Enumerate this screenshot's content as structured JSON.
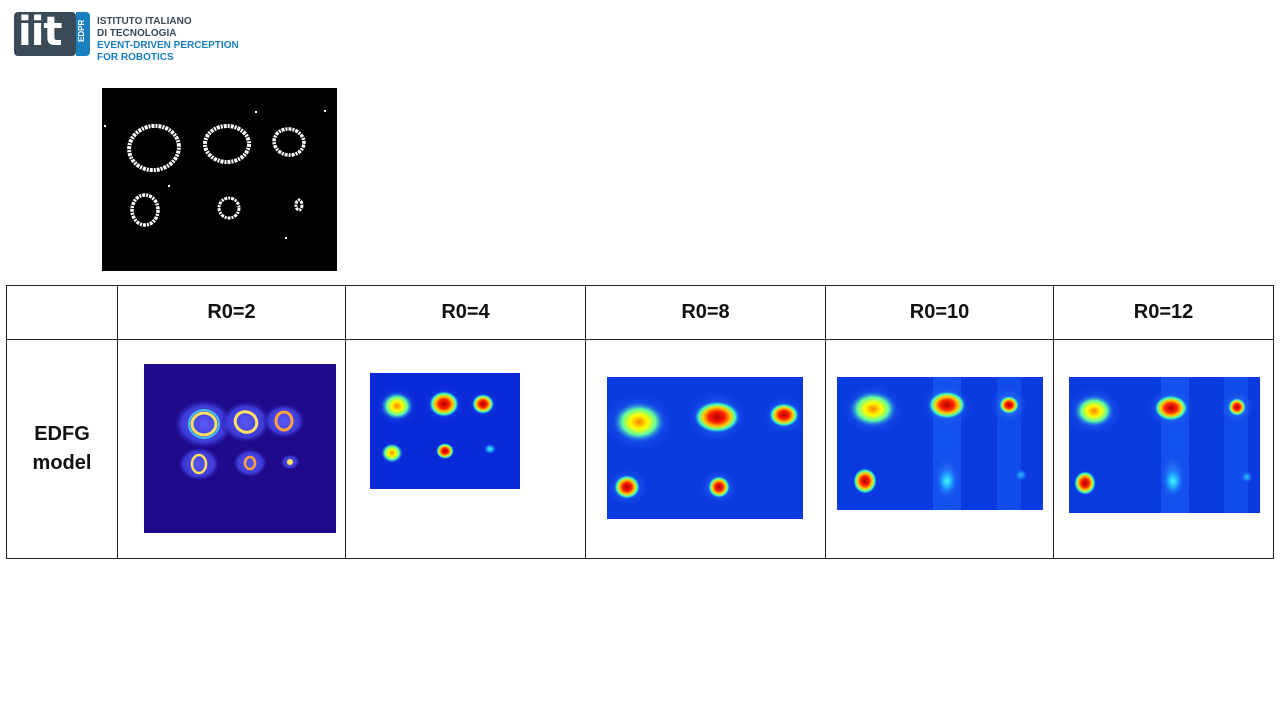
{
  "logo": {
    "mark": "iit",
    "badge": "EDPR",
    "line1": "ISTITUTO ITALIANO",
    "line2": "DI TECNOLOGIA",
    "line3": "EVENT-DRIVEN PERCEPTION",
    "line4": "FOR ROBOTICS"
  },
  "table": {
    "columns": [
      "",
      "R0=2",
      "R0=4",
      "R0=8",
      "R0=10",
      "R0=12"
    ],
    "row_label_line1": "EDFG",
    "row_label_line2": "model"
  }
}
